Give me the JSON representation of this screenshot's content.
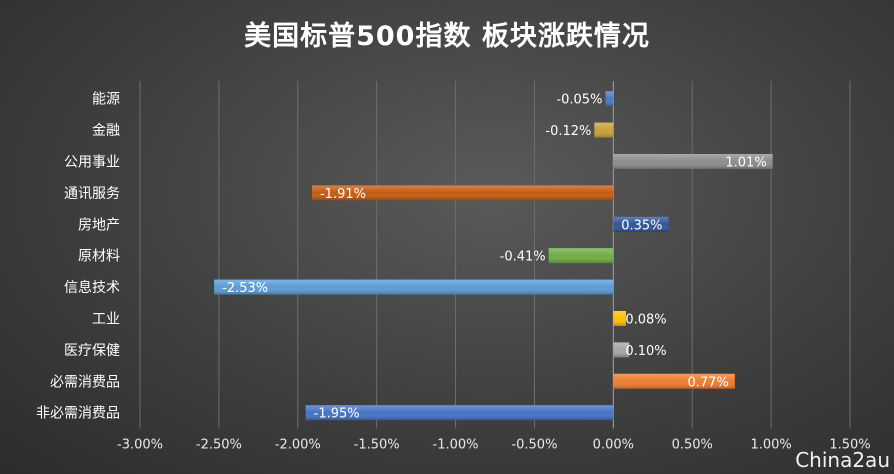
{
  "chart_data": {
    "type": "bar",
    "orientation": "horizontal",
    "title": "美国标普500指数 板块涨跌情况",
    "categories": [
      "能源",
      "金融",
      "公用事业",
      "通讯服务",
      "房地产",
      "原材料",
      "信息技术",
      "工业",
      "医疗保健",
      "必需消费品",
      "非必需消费品"
    ],
    "values": [
      -0.05,
      -0.12,
      1.01,
      -1.91,
      0.35,
      -0.41,
      -2.53,
      0.08,
      0.1,
      0.77,
      -1.95
    ],
    "value_labels": [
      "-0.05%",
      "-0.12%",
      "1.01%",
      "-1.91%",
      "0.35%",
      "-0.41%",
      "-2.53%",
      "0.08%",
      "0.10%",
      "0.77%",
      "-1.95%"
    ],
    "colors": [
      "#4a7bbd",
      "#c9a13a",
      "#8c8c8c",
      "#c55a11",
      "#2f5597",
      "#70ad47",
      "#5b9bd5",
      "#ffc000",
      "#a5a5a5",
      "#ed7d31",
      "#4472c4"
    ],
    "xlim": [
      -3.0,
      1.5
    ],
    "x_ticks": [
      -3.0,
      -2.5,
      -2.0,
      -1.5,
      -1.0,
      -0.5,
      0.0,
      0.5,
      1.0,
      1.5
    ],
    "x_tick_labels": [
      "-3.00%",
      "-2.50%",
      "-2.00%",
      "-1.50%",
      "-1.00%",
      "-0.50%",
      "0.00%",
      "0.50%",
      "1.00%",
      "1.50%"
    ],
    "xlabel": "",
    "ylabel": "",
    "grid": "vertical",
    "legend": "none"
  },
  "watermark": "China2au"
}
